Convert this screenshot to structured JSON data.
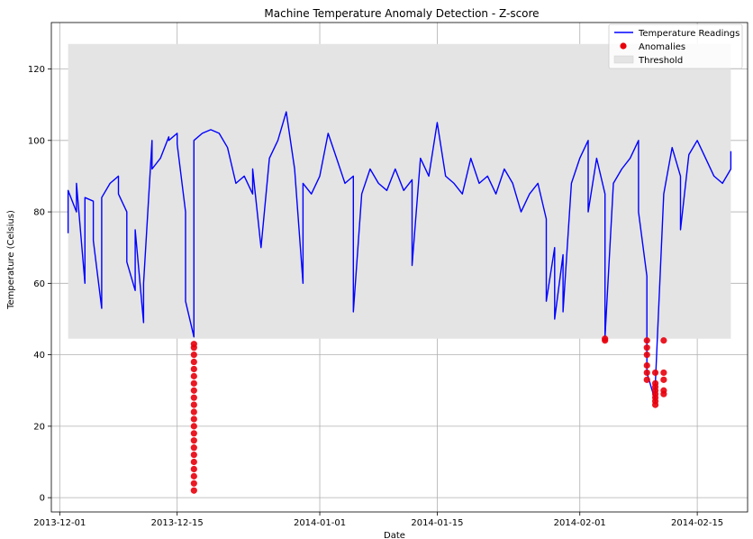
{
  "chart_data": {
    "type": "line",
    "title": "Machine Temperature Anomaly Detection - Z-score",
    "xlabel": "Date",
    "ylabel": "Temperature (Celsius)",
    "x_ticks": [
      "2013-12-01",
      "2013-12-15",
      "2014-01-01",
      "2014-01-15",
      "2014-02-01",
      "2014-02-15"
    ],
    "x_range": [
      "2013-11-30",
      "2014-02-21"
    ],
    "y_ticks": [
      0,
      20,
      40,
      60,
      80,
      100,
      120
    ],
    "ylim": [
      -4,
      133
    ],
    "grid": true,
    "legend": "top-right",
    "series": [
      {
        "name": "Temperature Readings",
        "color": "#0000ff",
        "points": [
          [
            "2013-12-02",
            74
          ],
          [
            "2013-12-02",
            86
          ],
          [
            "2013-12-03",
            80
          ],
          [
            "2013-12-03",
            88
          ],
          [
            "2013-12-04",
            60
          ],
          [
            "2013-12-04",
            84
          ],
          [
            "2013-12-05",
            83
          ],
          [
            "2013-12-05",
            72
          ],
          [
            "2013-12-06",
            53
          ],
          [
            "2013-12-06",
            84
          ],
          [
            "2013-12-07",
            88
          ],
          [
            "2013-12-08",
            90
          ],
          [
            "2013-12-08",
            85
          ],
          [
            "2013-12-09",
            80
          ],
          [
            "2013-12-09",
            66
          ],
          [
            "2013-12-10",
            58
          ],
          [
            "2013-12-10",
            75
          ],
          [
            "2013-12-11",
            49
          ],
          [
            "2013-12-11",
            60
          ],
          [
            "2013-12-12",
            100
          ],
          [
            "2013-12-12",
            92
          ],
          [
            "2013-12-13",
            95
          ],
          [
            "2013-12-14",
            101
          ],
          [
            "2013-12-14",
            100
          ],
          [
            "2013-12-15",
            102
          ],
          [
            "2013-12-15",
            99
          ],
          [
            "2013-12-16",
            80
          ],
          [
            "2013-12-16",
            55
          ],
          [
            "2013-12-17",
            45
          ],
          [
            "2013-12-17",
            100
          ],
          [
            "2013-12-18",
            102
          ],
          [
            "2013-12-19",
            103
          ],
          [
            "2013-12-20",
            102
          ],
          [
            "2013-12-21",
            98
          ],
          [
            "2013-12-22",
            88
          ],
          [
            "2013-12-23",
            90
          ],
          [
            "2013-12-24",
            85
          ],
          [
            "2013-12-24",
            92
          ],
          [
            "2013-12-25",
            70
          ],
          [
            "2013-12-26",
            95
          ],
          [
            "2013-12-27",
            100
          ],
          [
            "2013-12-28",
            108
          ],
          [
            "2013-12-29",
            92
          ],
          [
            "2013-12-30",
            60
          ],
          [
            "2013-12-30",
            88
          ],
          [
            "2013-12-31",
            85
          ],
          [
            "2014-01-01",
            90
          ],
          [
            "2014-01-02",
            102
          ],
          [
            "2014-01-03",
            95
          ],
          [
            "2014-01-04",
            88
          ],
          [
            "2014-01-05",
            90
          ],
          [
            "2014-01-05",
            52
          ],
          [
            "2014-01-06",
            85
          ],
          [
            "2014-01-07",
            92
          ],
          [
            "2014-01-08",
            88
          ],
          [
            "2014-01-09",
            86
          ],
          [
            "2014-01-10",
            92
          ],
          [
            "2014-01-11",
            86
          ],
          [
            "2014-01-12",
            89
          ],
          [
            "2014-01-12",
            65
          ],
          [
            "2014-01-13",
            95
          ],
          [
            "2014-01-14",
            90
          ],
          [
            "2014-01-15",
            105
          ],
          [
            "2014-01-16",
            90
          ],
          [
            "2014-01-17",
            88
          ],
          [
            "2014-01-18",
            85
          ],
          [
            "2014-01-19",
            95
          ],
          [
            "2014-01-20",
            88
          ],
          [
            "2014-01-21",
            90
          ],
          [
            "2014-01-22",
            85
          ],
          [
            "2014-01-23",
            92
          ],
          [
            "2014-01-24",
            88
          ],
          [
            "2014-01-25",
            80
          ],
          [
            "2014-01-26",
            85
          ],
          [
            "2014-01-27",
            88
          ],
          [
            "2014-01-28",
            78
          ],
          [
            "2014-01-28",
            55
          ],
          [
            "2014-01-29",
            70
          ],
          [
            "2014-01-29",
            50
          ],
          [
            "2014-01-30",
            68
          ],
          [
            "2014-01-30",
            52
          ],
          [
            "2014-01-31",
            88
          ],
          [
            "2014-02-01",
            95
          ],
          [
            "2014-02-02",
            100
          ],
          [
            "2014-02-02",
            80
          ],
          [
            "2014-02-03",
            95
          ],
          [
            "2014-02-04",
            85
          ],
          [
            "2014-02-04",
            45
          ],
          [
            "2014-02-05",
            88
          ],
          [
            "2014-02-06",
            92
          ],
          [
            "2014-02-07",
            95
          ],
          [
            "2014-02-08",
            100
          ],
          [
            "2014-02-08",
            80
          ],
          [
            "2014-02-09",
            62
          ],
          [
            "2014-02-09",
            35
          ],
          [
            "2014-02-10",
            27
          ],
          [
            "2014-02-10",
            32
          ],
          [
            "2014-02-11",
            85
          ],
          [
            "2014-02-12",
            98
          ],
          [
            "2014-02-13",
            90
          ],
          [
            "2014-02-13",
            75
          ],
          [
            "2014-02-14",
            96
          ],
          [
            "2014-02-15",
            100
          ],
          [
            "2014-02-16",
            95
          ],
          [
            "2014-02-17",
            90
          ],
          [
            "2014-02-18",
            88
          ],
          [
            "2014-02-19",
            92
          ],
          [
            "2014-02-19",
            97
          ]
        ]
      },
      {
        "name": "Anomalies",
        "color": "#e8000b",
        "points": [
          [
            "2013-12-17",
            2
          ],
          [
            "2013-12-17",
            4
          ],
          [
            "2013-12-17",
            6
          ],
          [
            "2013-12-17",
            8
          ],
          [
            "2013-12-17",
            10
          ],
          [
            "2013-12-17",
            12
          ],
          [
            "2013-12-17",
            14
          ],
          [
            "2013-12-17",
            16
          ],
          [
            "2013-12-17",
            18
          ],
          [
            "2013-12-17",
            20
          ],
          [
            "2013-12-17",
            22
          ],
          [
            "2013-12-17",
            24
          ],
          [
            "2013-12-17",
            26
          ],
          [
            "2013-12-17",
            28
          ],
          [
            "2013-12-17",
            30
          ],
          [
            "2013-12-17",
            32
          ],
          [
            "2013-12-17",
            34
          ],
          [
            "2013-12-17",
            36
          ],
          [
            "2013-12-17",
            38
          ],
          [
            "2013-12-17",
            40
          ],
          [
            "2013-12-17",
            42
          ],
          [
            "2013-12-17",
            43
          ],
          [
            "2014-02-04",
            44
          ],
          [
            "2014-02-04",
            44.5
          ],
          [
            "2014-02-09",
            44
          ],
          [
            "2014-02-09",
            42
          ],
          [
            "2014-02-09",
            40
          ],
          [
            "2014-02-09",
            37
          ],
          [
            "2014-02-09",
            35
          ],
          [
            "2014-02-09",
            33
          ],
          [
            "2014-02-10",
            31
          ],
          [
            "2014-02-10",
            29
          ],
          [
            "2014-02-10",
            27
          ],
          [
            "2014-02-10",
            26
          ],
          [
            "2014-02-10",
            28
          ],
          [
            "2014-02-10",
            30
          ],
          [
            "2014-02-10",
            32
          ],
          [
            "2014-02-10",
            35
          ],
          [
            "2014-02-11",
            33
          ],
          [
            "2014-02-11",
            30
          ],
          [
            "2014-02-11",
            29
          ],
          [
            "2014-02-11",
            35
          ],
          [
            "2014-02-11",
            44
          ]
        ]
      },
      {
        "name": "Threshold",
        "type": "band",
        "color": "#e4e4e4",
        "x_start": "2013-12-02",
        "x_end": "2014-02-19",
        "y_low": 44.5,
        "y_high": 127
      }
    ]
  }
}
